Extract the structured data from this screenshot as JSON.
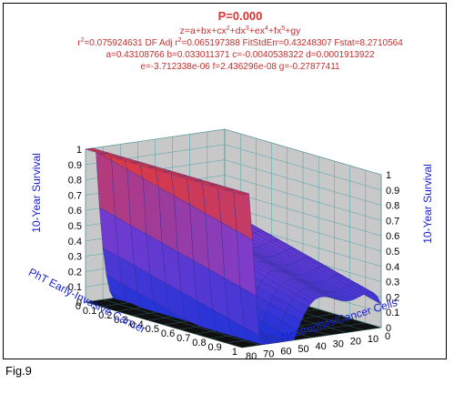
{
  "caption": "Fig.9",
  "chart_data": {
    "type": "surface3d",
    "header": {
      "p_value": "P=0.000",
      "equation": [
        "z=a+bx+cx",
        "2",
        "+dx",
        "3",
        "+ex",
        "4",
        "+fx",
        "5",
        "+gy"
      ],
      "stats": [
        "r",
        "2",
        "=0.075924631  DF Adj r",
        "2",
        "=0.065197388  FitStdErr=0.43248307  Fstat=8.2710564"
      ],
      "coef1": "a=0.43108766 b=0.033011371 c=-0.0040538322 d=0.0001913922",
      "coef2": "e=-3.712338e-06 f=2.436296e-08 g=-0.27877411"
    },
    "xlabel": "Neutrophils/Cancer Cells",
    "ylabel": "PhT Early-Invasive Cancer",
    "zlabel": "10-Year Survival",
    "xlim": [
      0,
      80
    ],
    "ylim": [
      0,
      1
    ],
    "zlim": [
      0,
      1
    ],
    "x_ticks": [
      "0",
      "10",
      "20",
      "30",
      "40",
      "50",
      "60",
      "70",
      "80"
    ],
    "y_ticks": [
      "0",
      "0.1",
      "0.2",
      "0.3",
      "0.4",
      "0.5",
      "0.6",
      "0.7",
      "0.8",
      "0.9",
      "1"
    ],
    "z_ticks": [
      "0",
      "0.1",
      "0.2",
      "0.3",
      "0.4",
      "0.5",
      "0.6",
      "0.7",
      "0.8",
      "0.9",
      "1"
    ],
    "colormap": [
      "#1f33d8",
      "#7a3ccf",
      "#e23a3a"
    ],
    "wall_color": "#c8c8c8",
    "floor_color": "#101010",
    "title_color": "#e03030",
    "label_color": "#1a22d0",
    "model": {
      "a": 0.43108766,
      "b": 0.033011371,
      "c": -0.0040538322,
      "d": 0.0001913922,
      "e": -3.712338e-06,
      "f": 2.436296e-08,
      "g": -0.27877411
    }
  }
}
